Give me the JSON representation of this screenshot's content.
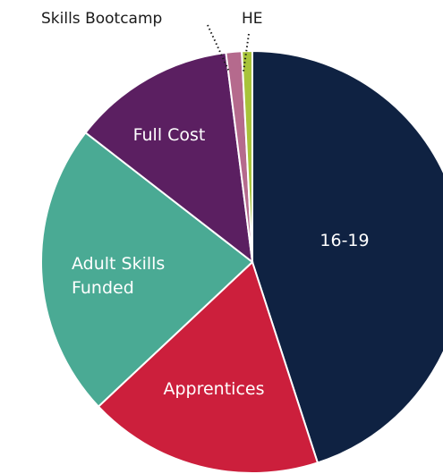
{
  "chart_data": {
    "type": "pie",
    "title": "",
    "slices": [
      {
        "label": "16-19",
        "value": 45.0,
        "color": "#0f2242"
      },
      {
        "label": "Apprentices",
        "value": 18.0,
        "color": "#cc1f3c"
      },
      {
        "label": "Adult Skills Funded",
        "value": 22.5,
        "color": "#4aaa94"
      },
      {
        "label": "Full Cost",
        "value": 12.5,
        "color": "#5b1f61"
      },
      {
        "label": "Skills Bootcamp",
        "value": 1.2,
        "color": "#b56a8d"
      },
      {
        "label": "HE",
        "value": 0.8,
        "color": "#a8c33a"
      }
    ],
    "label_style": "inside",
    "callouts": [
      "Skills Bootcamp",
      "HE"
    ]
  }
}
